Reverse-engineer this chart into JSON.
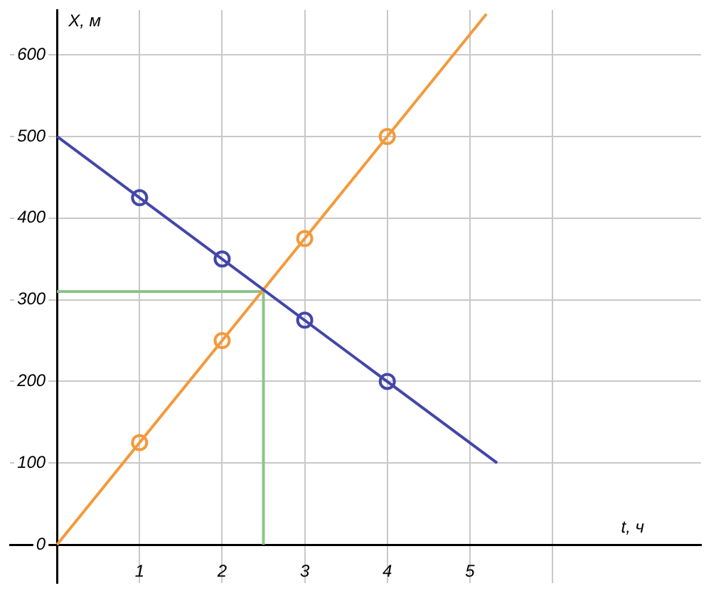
{
  "chart_data": {
    "type": "line",
    "xlabel": "t, ч",
    "ylabel": "X, м",
    "xlim": [
      -0.57,
      7.8
    ],
    "ylim": [
      -47,
      655
    ],
    "xticks": [
      {
        "value": 0,
        "label": null
      },
      1,
      2,
      3,
      4,
      5,
      {
        "value": 6,
        "label": null
      }
    ],
    "yticks": [
      0,
      100,
      200,
      300,
      400,
      500,
      600
    ],
    "grid": true,
    "legend": false,
    "series": [
      {
        "type": "line",
        "color": "#4347a8",
        "x": [
          0,
          5.33
        ],
        "values": [
          500,
          100
        ]
      },
      {
        "type": "line",
        "color": "#f39a3b",
        "x": [
          0,
          5.2
        ],
        "values": [
          0,
          650
        ]
      },
      {
        "type": "line",
        "color": "#8cc48c",
        "x": [
          0,
          2.5
        ],
        "values": [
          310,
          310
        ]
      },
      {
        "type": "line",
        "color": "#8cc48c",
        "x": [
          2.5,
          2.5
        ],
        "values": [
          0,
          310
        ]
      },
      {
        "type": "scatter",
        "color": "#4347a8",
        "x": [
          1,
          2,
          3,
          4
        ],
        "values": [
          425,
          350,
          275,
          200
        ],
        "marker": "circle"
      },
      {
        "type": "scatter",
        "color": "#f39a3b",
        "x": [
          1,
          2,
          3,
          4
        ],
        "values": [
          125,
          250,
          375,
          500
        ],
        "marker": "circle"
      }
    ]
  }
}
